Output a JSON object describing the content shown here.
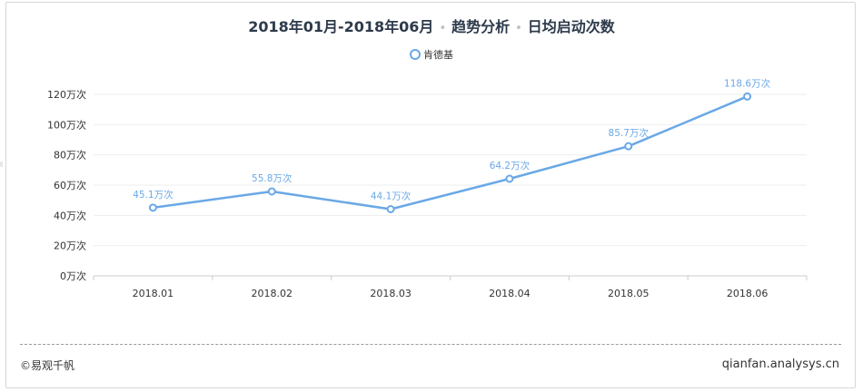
{
  "header": {
    "date_range": "2018年01月-2018年06月",
    "section": "趋势分析",
    "metric": "日均启动次数"
  },
  "colors": {
    "series": "#6aa8e6",
    "axis": "#cccccc",
    "grid": "#eeeeee"
  },
  "chart_data": {
    "type": "line",
    "categories": [
      "2018.01",
      "2018.02",
      "2018.03",
      "2018.04",
      "2018.05",
      "2018.06"
    ],
    "series": [
      {
        "name": "肯德基",
        "values": [
          45.1,
          55.8,
          44.1,
          64.2,
          85.7,
          118.6
        ]
      }
    ],
    "data_labels": [
      "45.1万次",
      "55.8万次",
      "44.1万次",
      "64.2万次",
      "85.7万次",
      "118.6万次"
    ],
    "y_ticks": [
      0,
      20,
      40,
      60,
      80,
      100,
      120
    ],
    "y_tick_labels": [
      "0万次",
      "20万次",
      "40万次",
      "60万次",
      "80万次",
      "100万次",
      "120万次"
    ],
    "ylim": [
      0,
      120
    ],
    "grid": true,
    "legend_position": "top-center"
  },
  "footer": {
    "copyright": "©易观千帆",
    "site": "qianfan.analysys.cn"
  }
}
